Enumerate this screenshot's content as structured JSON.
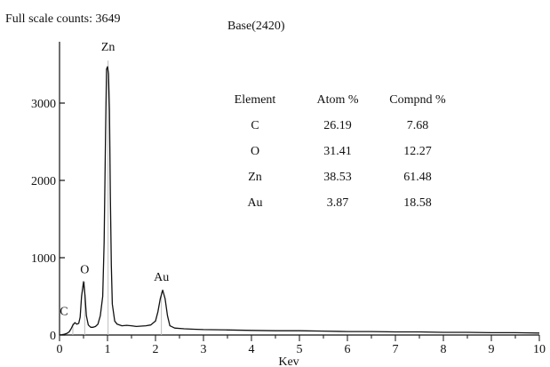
{
  "header": {
    "full_scale": "Full scale counts: 3649",
    "base": "Base(2420)"
  },
  "chart_data": {
    "type": "line",
    "xlabel": "Kev",
    "ylabel": "",
    "xlim": [
      0,
      10
    ],
    "ylim": [
      0,
      3700
    ],
    "x_ticks": [
      0,
      1,
      2,
      3,
      4,
      5,
      6,
      7,
      8,
      9,
      10
    ],
    "y_ticks": [
      0,
      1000,
      2000,
      3000
    ],
    "grid": false,
    "series": [
      {
        "name": "",
        "points": [
          [
            0.0,
            0
          ],
          [
            0.05,
            5
          ],
          [
            0.1,
            10
          ],
          [
            0.15,
            20
          ],
          [
            0.2,
            40
          ],
          [
            0.24,
            80
          ],
          [
            0.28,
            130
          ],
          [
            0.32,
            160
          ],
          [
            0.36,
            140
          ],
          [
            0.4,
            150
          ],
          [
            0.43,
            230
          ],
          [
            0.46,
            500
          ],
          [
            0.5,
            690
          ],
          [
            0.53,
            520
          ],
          [
            0.56,
            250
          ],
          [
            0.6,
            130
          ],
          [
            0.65,
            100
          ],
          [
            0.7,
            100
          ],
          [
            0.75,
            110
          ],
          [
            0.8,
            140
          ],
          [
            0.85,
            250
          ],
          [
            0.9,
            500
          ],
          [
            0.93,
            1200
          ],
          [
            0.96,
            2600
          ],
          [
            0.98,
            3440
          ],
          [
            1.0,
            3470
          ],
          [
            1.02,
            3380
          ],
          [
            1.04,
            2900
          ],
          [
            1.06,
            1800
          ],
          [
            1.08,
            900
          ],
          [
            1.1,
            400
          ],
          [
            1.15,
            180
          ],
          [
            1.2,
            140
          ],
          [
            1.3,
            120
          ],
          [
            1.4,
            125
          ],
          [
            1.5,
            120
          ],
          [
            1.6,
            110
          ],
          [
            1.7,
            115
          ],
          [
            1.8,
            120
          ],
          [
            1.9,
            130
          ],
          [
            2.0,
            180
          ],
          [
            2.05,
            300
          ],
          [
            2.1,
            470
          ],
          [
            2.15,
            580
          ],
          [
            2.2,
            470
          ],
          [
            2.25,
            250
          ],
          [
            2.3,
            120
          ],
          [
            2.4,
            90
          ],
          [
            2.6,
            80
          ],
          [
            2.8,
            75
          ],
          [
            3.0,
            70
          ],
          [
            3.5,
            65
          ],
          [
            4.0,
            60
          ],
          [
            4.5,
            55
          ],
          [
            5.0,
            55
          ],
          [
            5.5,
            50
          ],
          [
            6.0,
            45
          ],
          [
            6.5,
            45
          ],
          [
            7.0,
            40
          ],
          [
            7.5,
            40
          ],
          [
            8.0,
            35
          ],
          [
            8.5,
            35
          ],
          [
            9.0,
            30
          ],
          [
            9.5,
            30
          ],
          [
            9.8,
            28
          ],
          [
            10.0,
            25
          ]
        ]
      }
    ],
    "peak_labels": [
      {
        "label": "C",
        "x": 0.277
      },
      {
        "label": "O",
        "x": 0.525
      },
      {
        "label": "Zn",
        "x": 1.012
      },
      {
        "label": "Au",
        "x": 2.123
      }
    ],
    "table": {
      "columns": [
        "Element",
        "Atom %",
        "Compnd %"
      ],
      "rows": [
        [
          "C",
          "26.19",
          "7.68"
        ],
        [
          "O",
          "31.41",
          "12.27"
        ],
        [
          "Zn",
          "38.53",
          "61.48"
        ],
        [
          "Au",
          "3.87",
          "18.58"
        ]
      ]
    }
  }
}
